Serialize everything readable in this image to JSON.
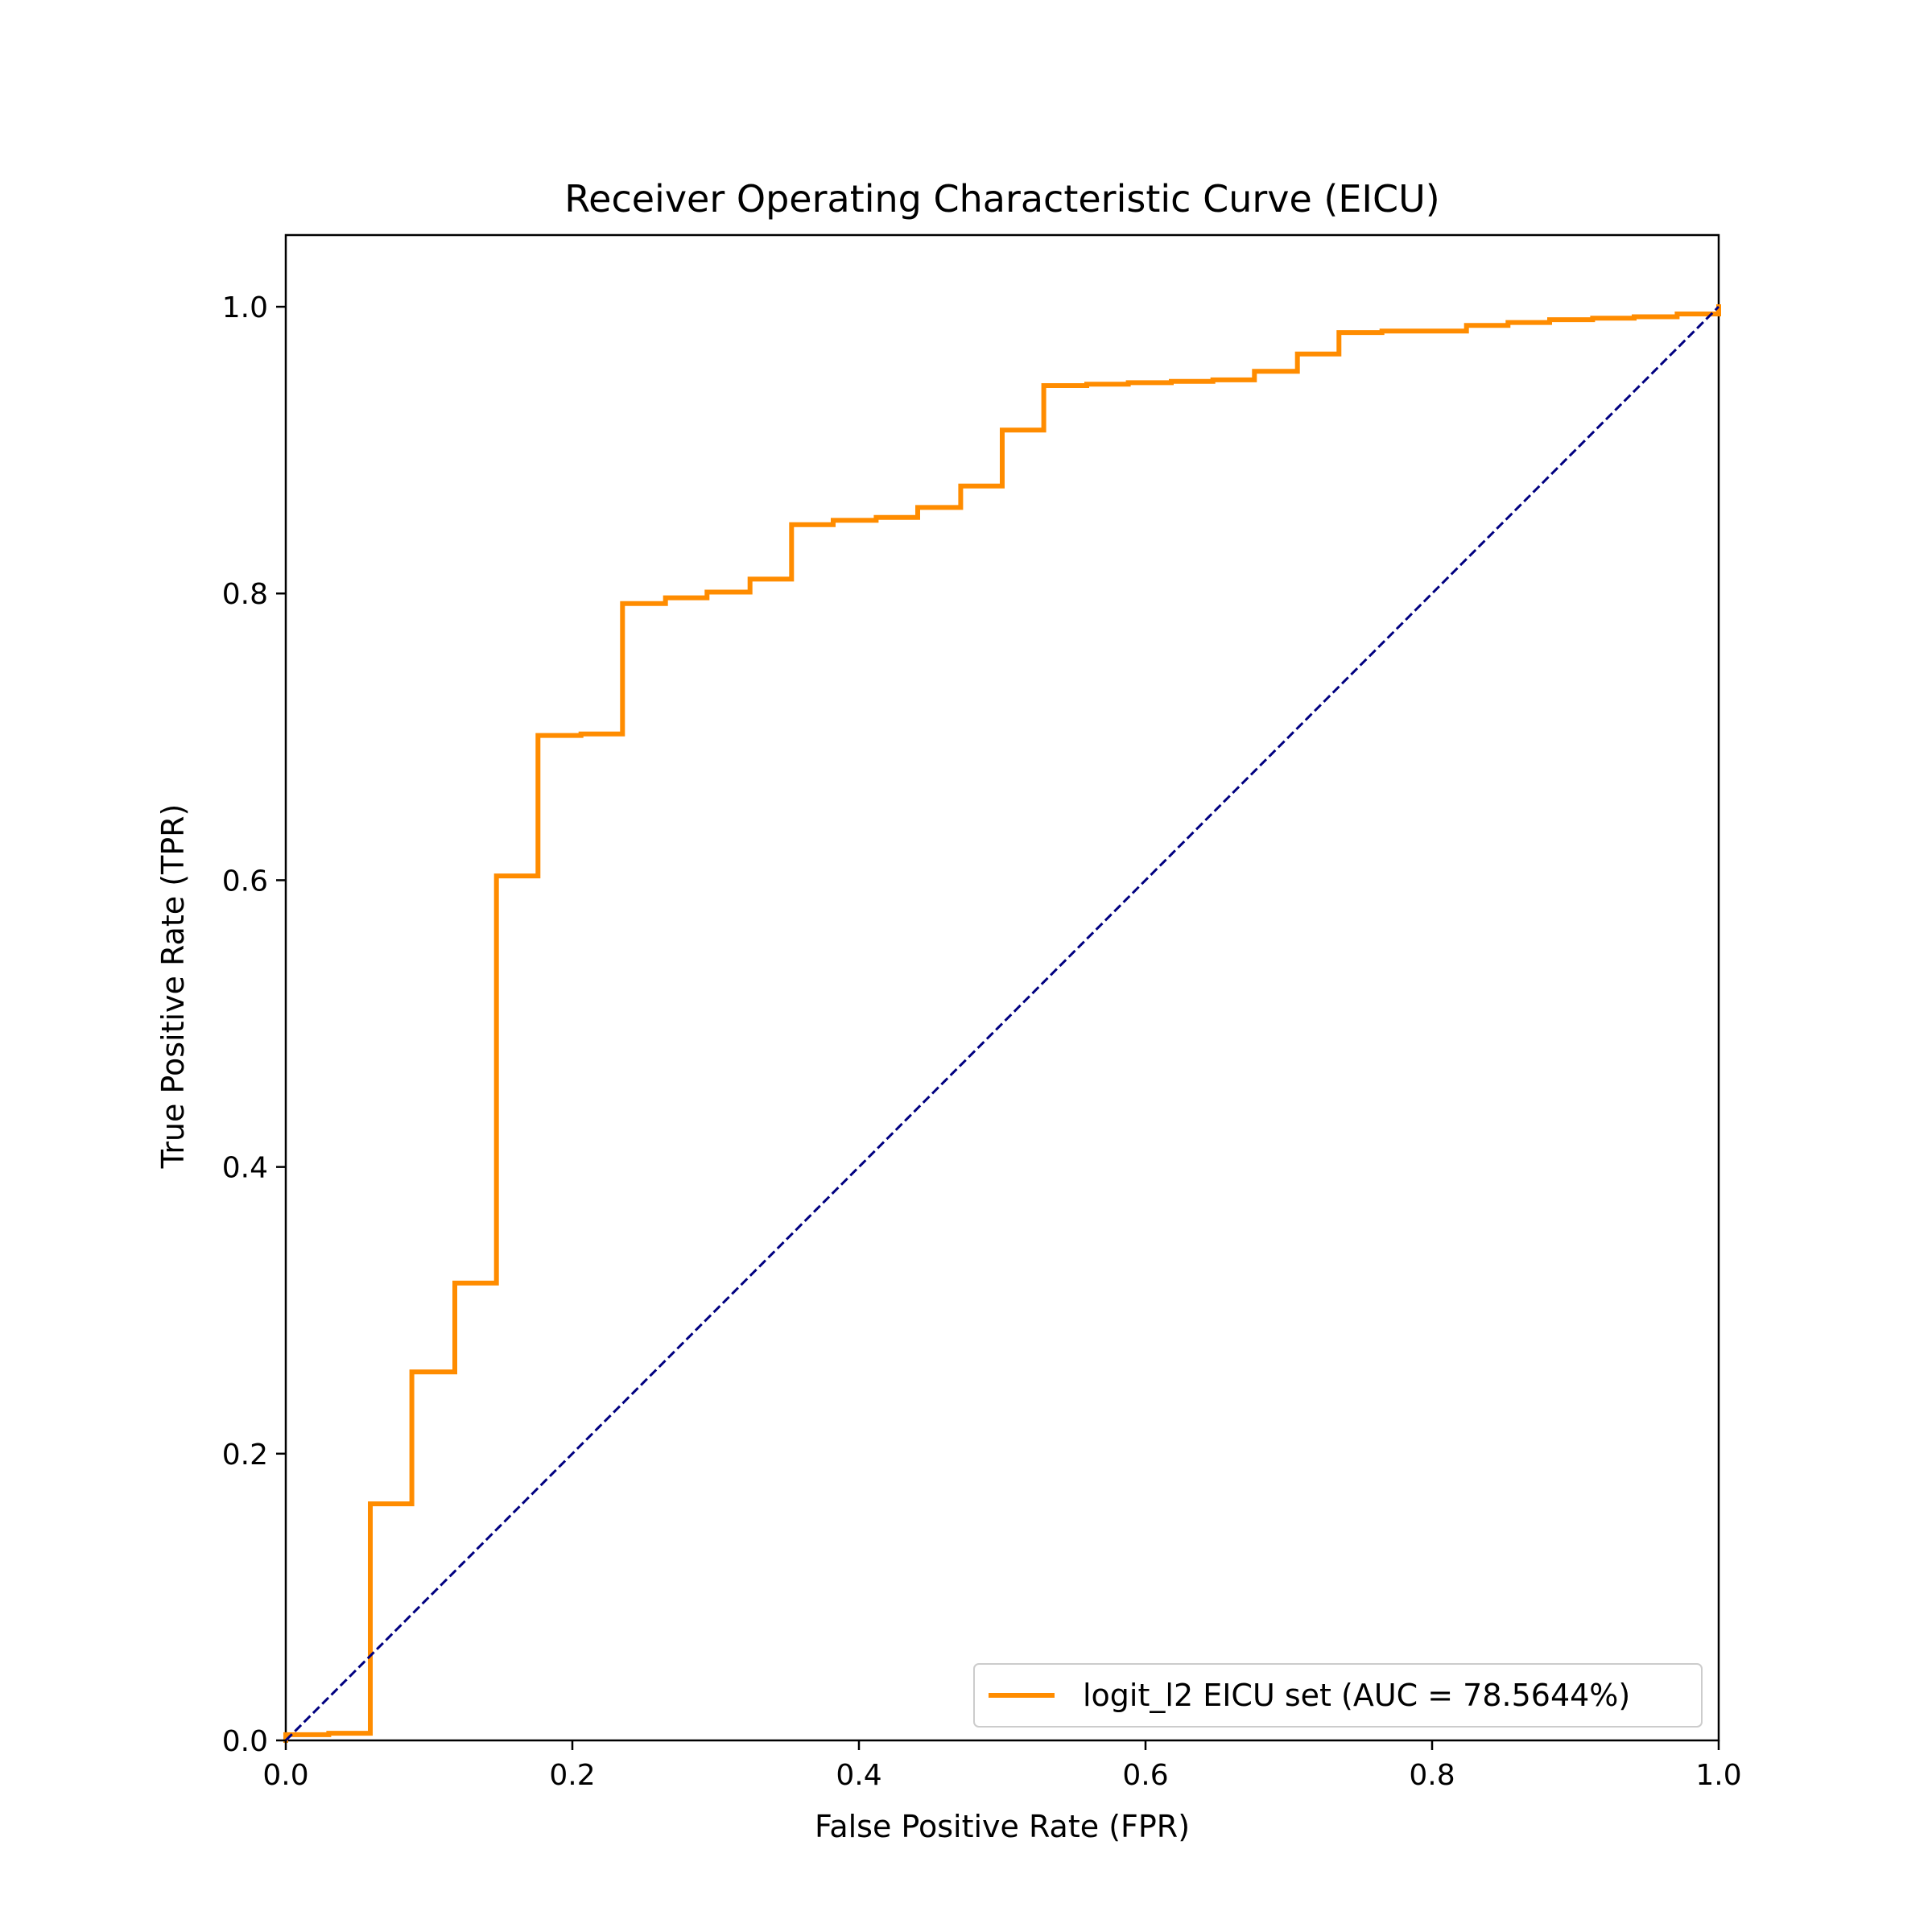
{
  "chart_data": {
    "type": "line",
    "title": "Receiver Operating Characteristic Curve (EICU)",
    "xlabel": "False Positive Rate (FPR)",
    "ylabel": "True Positive Rate (TPR)",
    "xlim": [
      0.0,
      1.0
    ],
    "ylim": [
      0.0,
      1.05
    ],
    "xticks": [
      "0.0",
      "0.2",
      "0.4",
      "0.6",
      "0.8",
      "1.0"
    ],
    "yticks": [
      "0.0",
      "0.2",
      "0.4",
      "0.6",
      "0.8",
      "1.0"
    ],
    "grid": false,
    "legend_position": "lower-right",
    "series": [
      {
        "name": "logit_l2 EICU set (AUC = 78.5644%)",
        "color": "#ff8c00",
        "style": "solid",
        "x": [
          0.0,
          0.0,
          0.03,
          0.03,
          0.059,
          0.059,
          0.088,
          0.088,
          0.118,
          0.118,
          0.147,
          0.147,
          0.176,
          0.176,
          0.206,
          0.206,
          0.235,
          0.235,
          0.265,
          0.265,
          0.294,
          0.294,
          0.324,
          0.324,
          0.353,
          0.353,
          0.382,
          0.382,
          0.412,
          0.412,
          0.441,
          0.441,
          0.471,
          0.471,
          0.5,
          0.5,
          0.529,
          0.529,
          0.559,
          0.559,
          0.588,
          0.588,
          0.618,
          0.618,
          0.647,
          0.647,
          0.676,
          0.676,
          0.706,
          0.706,
          0.735,
          0.735,
          0.765,
          0.765,
          0.824,
          0.824,
          0.853,
          0.853,
          0.882,
          0.882,
          0.912,
          0.912,
          0.941,
          0.941,
          0.971,
          0.971,
          1.0,
          1.0
        ],
        "y": [
          0.0,
          0.004,
          0.004,
          0.005,
          0.005,
          0.165,
          0.165,
          0.257,
          0.257,
          0.319,
          0.319,
          0.603,
          0.603,
          0.701,
          0.701,
          0.702,
          0.702,
          0.793,
          0.793,
          0.797,
          0.797,
          0.801,
          0.801,
          0.81,
          0.81,
          0.848,
          0.848,
          0.851,
          0.851,
          0.853,
          0.853,
          0.86,
          0.86,
          0.875,
          0.875,
          0.914,
          0.914,
          0.945,
          0.945,
          0.946,
          0.946,
          0.947,
          0.947,
          0.948,
          0.948,
          0.949,
          0.949,
          0.955,
          0.955,
          0.967,
          0.967,
          0.982,
          0.982,
          0.983,
          0.983,
          0.987,
          0.987,
          0.989,
          0.989,
          0.991,
          0.991,
          0.992,
          0.992,
          0.993,
          0.993,
          0.995,
          0.995,
          1.0
        ]
      },
      {
        "name": "",
        "color": "#000080",
        "style": "dashed",
        "x": [
          0.0,
          1.0
        ],
        "y": [
          0.0,
          1.0
        ]
      }
    ]
  }
}
